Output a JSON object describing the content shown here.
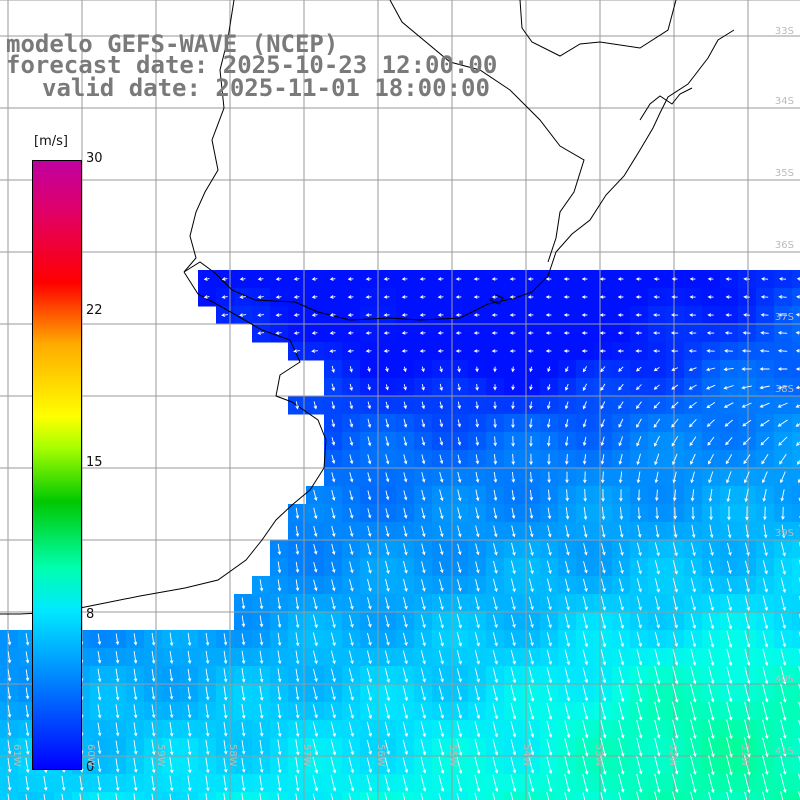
{
  "title": {
    "line1": "modelo GEFS-WAVE (NCEP)",
    "line2": "forecast date: 2025-10-23 12:00:00",
    "line3": "valid date: 2025-11-01 18:00:00"
  },
  "colorbar": {
    "unit": "[m/s]",
    "ticks": [
      "30",
      "22",
      "15",
      "8",
      "0"
    ],
    "tick_values": [
      30,
      22,
      15,
      8,
      0
    ],
    "min": 0,
    "max": 30
  },
  "lat_labels": [
    "33S",
    "34S",
    "35S",
    "36S",
    "37S",
    "38S",
    "39S",
    "40S",
    "41S"
  ],
  "lon_labels": [
    "61W",
    "60W",
    "59W",
    "58W",
    "57W",
    "56W",
    "55W",
    "54W",
    "53W",
    "52W",
    "51W"
  ],
  "colors": {
    "land": "#ffffff",
    "coast": "#000000",
    "grid": "#9a9a9a",
    "arrow": "#ffffff",
    "title": "#7a7a7a"
  }
}
